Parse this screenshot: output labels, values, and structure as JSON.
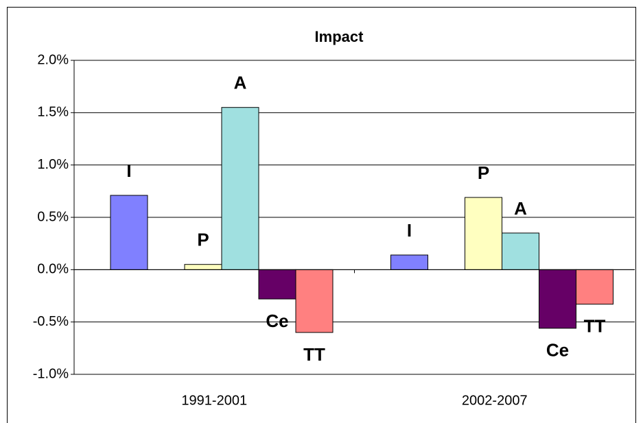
{
  "chart_data": {
    "type": "bar",
    "title": "Impact",
    "categories": [
      "1991-2001",
      "2002-2007"
    ],
    "series": [
      {
        "name": "I",
        "color": "#8080ff",
        "values": [
          0.71,
          0.14
        ]
      },
      {
        "name": "P",
        "color": "#ffffc0",
        "values": [
          0.05,
          0.69
        ]
      },
      {
        "name": "A",
        "color": "#a0e0e0",
        "values": [
          1.55,
          0.35
        ]
      },
      {
        "name": "Ce",
        "color": "#660066",
        "values": [
          -0.28,
          -0.56
        ]
      },
      {
        "name": "TT",
        "color": "#ff8080",
        "values": [
          -0.6,
          -0.33
        ]
      }
    ],
    "ylim": [
      -1.0,
      2.0
    ],
    "yticks": [
      {
        "value": -1.0,
        "label": "-1.0%"
      },
      {
        "value": -0.5,
        "label": "-0.5%"
      },
      {
        "value": 0,
        "label": "0.0%"
      },
      {
        "value": 0.5,
        "label": "0.5%"
      },
      {
        "value": 1.0,
        "label": "1.0%"
      },
      {
        "value": 1.5,
        "label": "1.5%"
      },
      {
        "value": 2.0,
        "label": "2.0%"
      }
    ],
    "grid": true
  }
}
